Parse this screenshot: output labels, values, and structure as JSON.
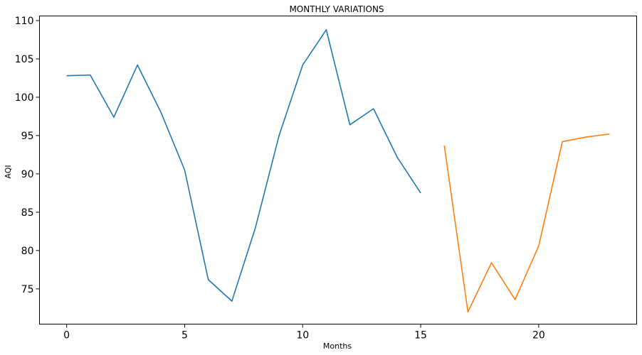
{
  "chart_data": {
    "type": "line",
    "title": "MONTHLY VARIATIONS",
    "xlabel": "Months",
    "ylabel": "AQI",
    "xlim": [
      -1.15,
      24.15
    ],
    "ylim": [
      70.4,
      110.6
    ],
    "xticks": [
      0,
      5,
      10,
      15,
      20
    ],
    "yticks": [
      75,
      80,
      85,
      90,
      95,
      100,
      105,
      110
    ],
    "grid": false,
    "legend": "none",
    "series": [
      {
        "color": "#1f77b4",
        "x": [
          0,
          1,
          2,
          3,
          4,
          5,
          6,
          7,
          8,
          9,
          10,
          11,
          12,
          13,
          14,
          15
        ],
        "y": [
          102.8,
          102.9,
          97.4,
          104.2,
          98.0,
          90.5,
          76.2,
          73.4,
          83.0,
          95.0,
          104.2,
          108.8,
          96.4,
          98.5,
          92.2,
          87.5
        ]
      },
      {
        "color": "#ff7f0e",
        "x": [
          16,
          17,
          18,
          19,
          20,
          21,
          22,
          23
        ],
        "y": [
          93.7,
          72.0,
          78.4,
          73.6,
          80.6,
          94.2,
          94.8,
          95.2
        ]
      }
    ]
  }
}
